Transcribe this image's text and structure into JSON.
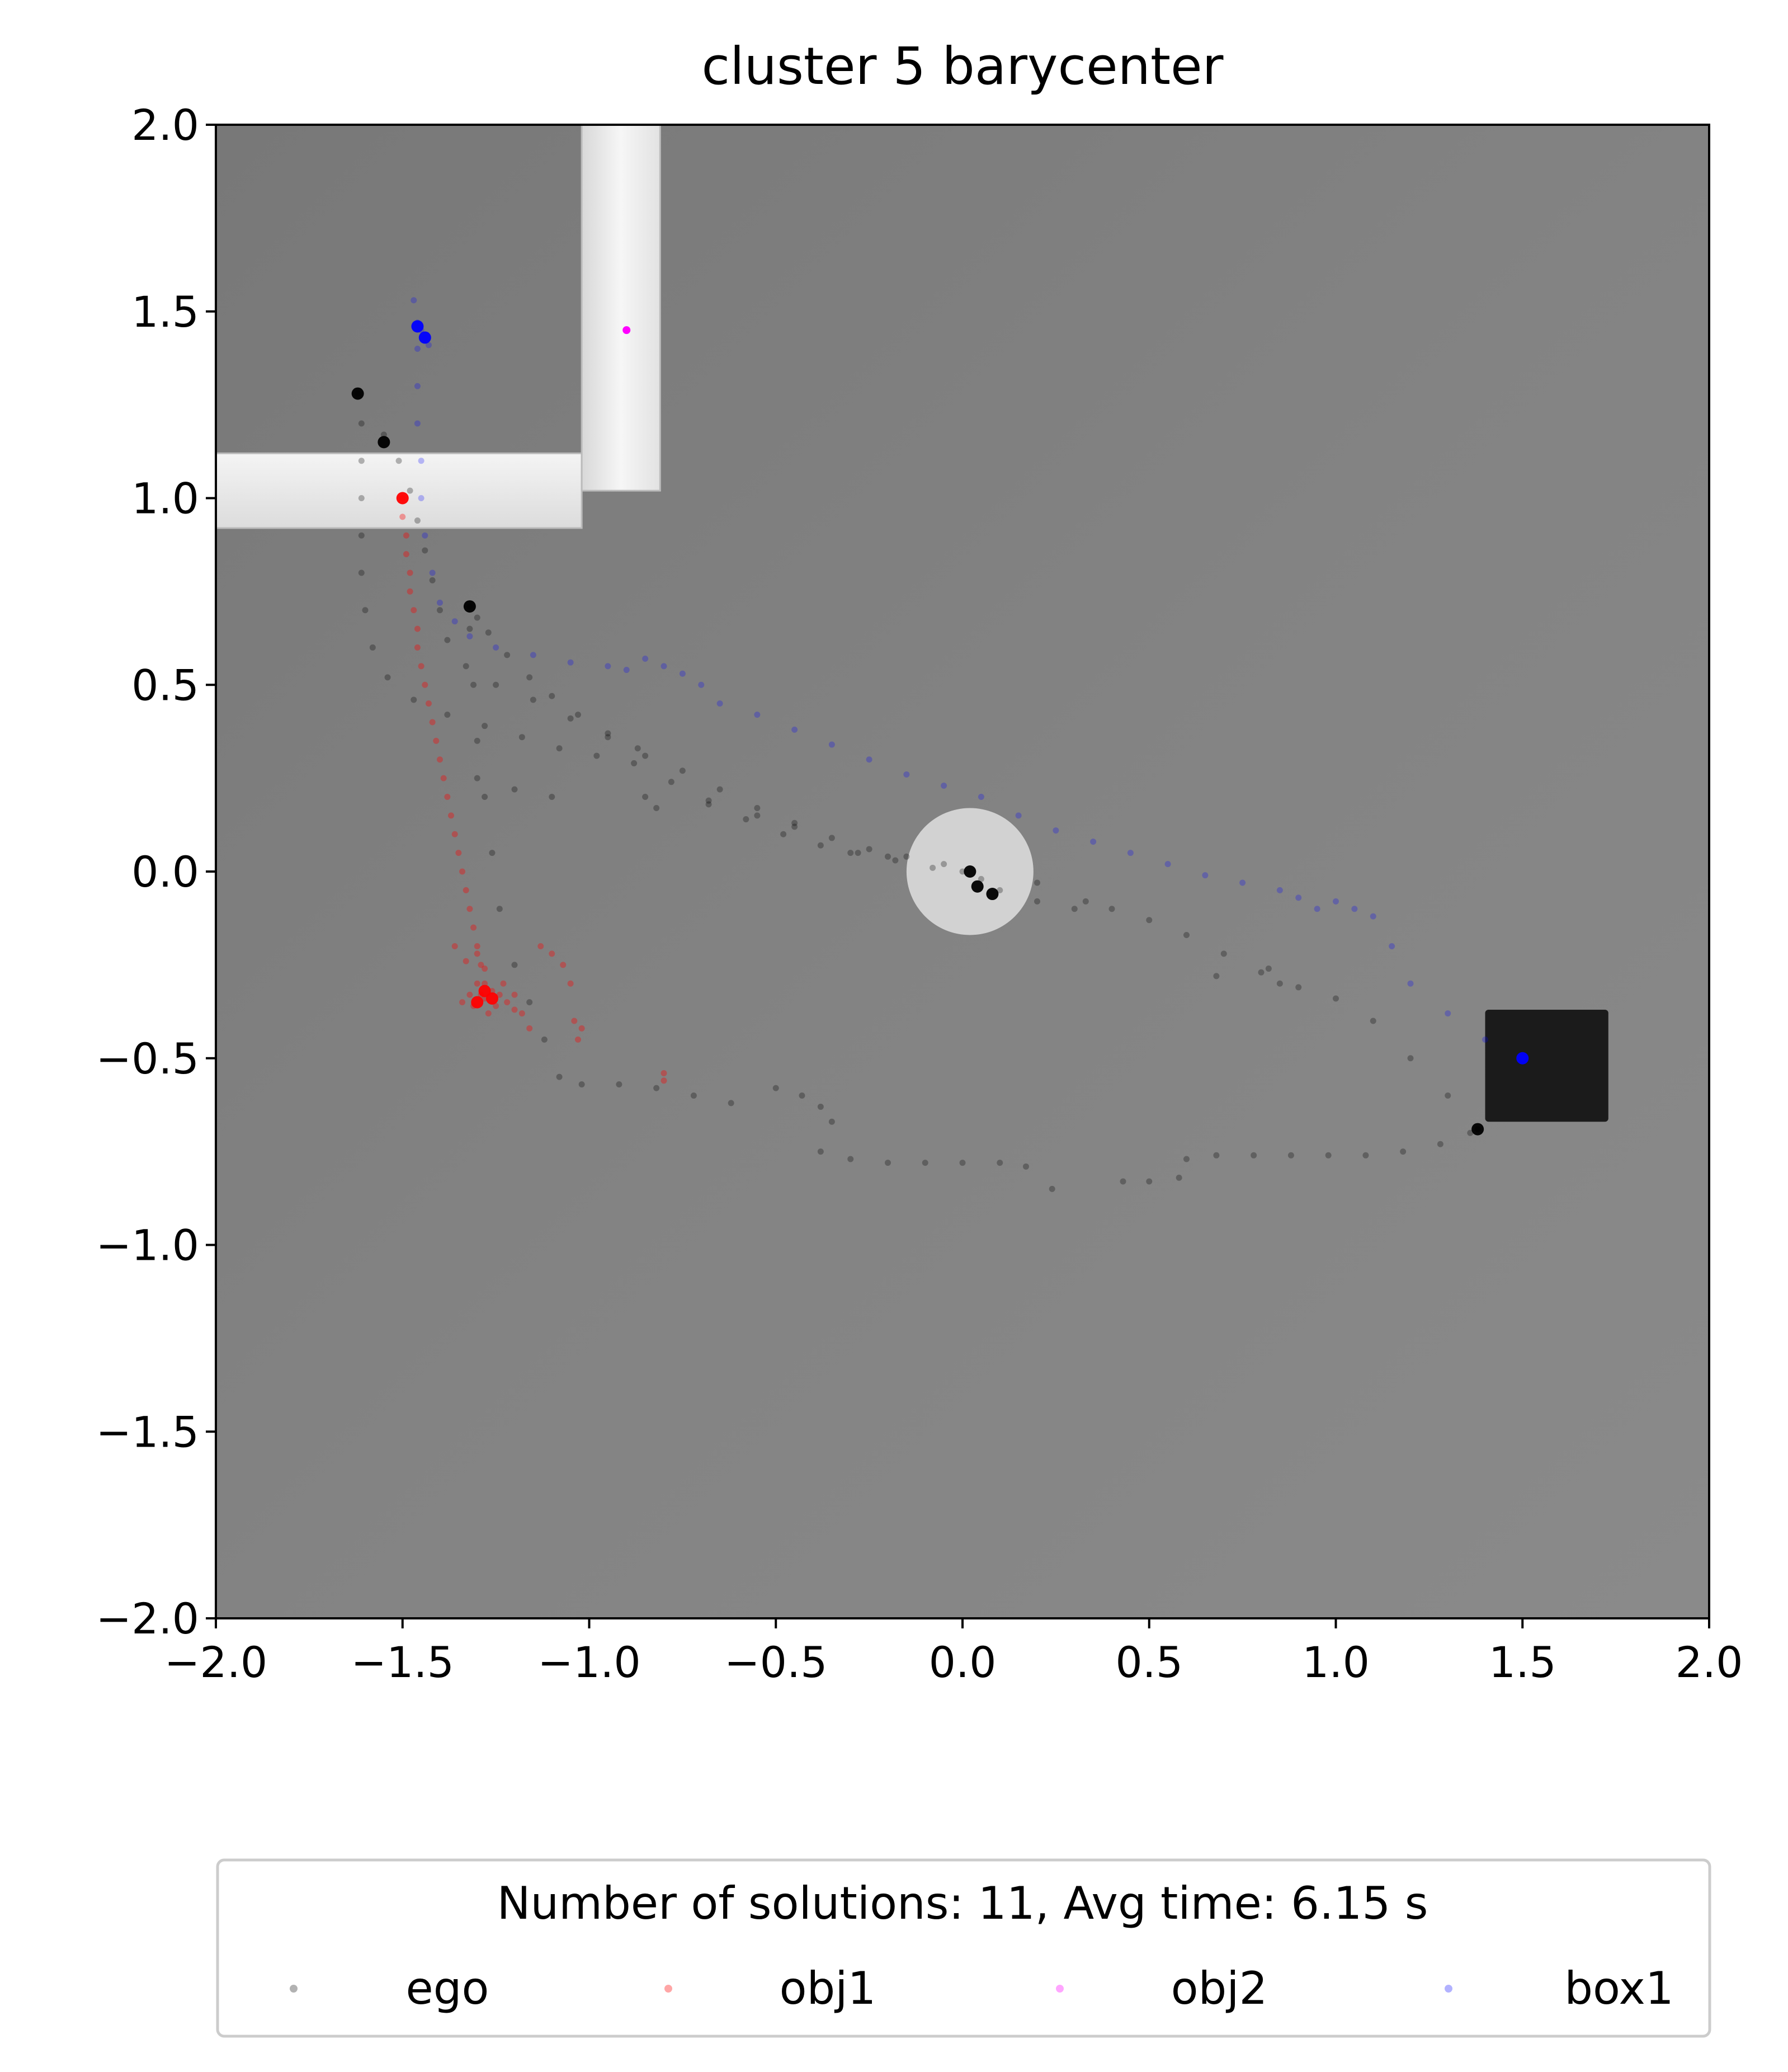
{
  "chart_data": {
    "type": "scatter",
    "title": "cluster 5 barycenter",
    "xlim": [
      -2.0,
      2.0
    ],
    "ylim": [
      -2.0,
      2.0
    ],
    "xticks": [
      "−2.0",
      "−1.5",
      "−1.0",
      "−0.5",
      "0.0",
      "0.5",
      "1.0",
      "1.5",
      "2.0"
    ],
    "yticks": [
      "2.0",
      "1.5",
      "1.0",
      "0.5",
      "0.0",
      "−0.5",
      "−1.0",
      "−1.5",
      "−2.0"
    ],
    "xtick_values": [
      -2.0,
      -1.5,
      -1.0,
      -0.5,
      0.0,
      0.5,
      1.0,
      1.5,
      2.0
    ],
    "ytick_values": [
      2.0,
      1.5,
      1.0,
      0.5,
      0.0,
      -0.5,
      -1.0,
      -1.5,
      -2.0
    ],
    "legend": {
      "title": "Number of solutions: 11, Avg time: 6.15 s",
      "placement": "below plot",
      "entries": [
        "ego",
        "obj1",
        "obj2",
        "box1"
      ]
    },
    "colors": {
      "ego": "#000000",
      "obj1": "#ff0000",
      "obj2": "#ff00ff",
      "box1": "#0000ff"
    },
    "background": {
      "walls": [
        {
          "x0": -2.0,
          "x1": -1.02,
          "y0": 0.92,
          "y1": 1.12
        },
        {
          "x0": -1.02,
          "x1": -0.81,
          "y0": 1.02,
          "y1": 2.0
        }
      ],
      "round_table": {
        "cx": 0.02,
        "cy": 0.0,
        "r": 0.17
      },
      "dark_box": {
        "x0": 1.4,
        "x1": 1.73,
        "y0": -0.67,
        "y1": -0.37
      }
    },
    "series": [
      {
        "name": "ego",
        "points": [
          [
            -1.62,
            1.28
          ],
          [
            -1.61,
            1.2
          ],
          [
            -1.61,
            1.1
          ],
          [
            -1.61,
            1.0
          ],
          [
            -1.61,
            0.9
          ],
          [
            -1.61,
            0.8
          ],
          [
            -1.6,
            0.7
          ],
          [
            -1.58,
            0.6
          ],
          [
            -1.54,
            0.52
          ],
          [
            -1.47,
            0.46
          ],
          [
            -1.38,
            0.42
          ],
          [
            -1.28,
            0.39
          ],
          [
            -1.18,
            0.36
          ],
          [
            -1.08,
            0.33
          ],
          [
            -0.98,
            0.31
          ],
          [
            -0.88,
            0.29
          ],
          [
            -0.78,
            0.24
          ],
          [
            -0.68,
            0.19
          ],
          [
            -0.58,
            0.14
          ],
          [
            -0.48,
            0.1
          ],
          [
            -0.38,
            0.07
          ],
          [
            -0.28,
            0.05
          ],
          [
            -0.18,
            0.03
          ],
          [
            -0.08,
            0.01
          ],
          [
            0.0,
            0.0
          ],
          [
            -1.55,
            1.17
          ],
          [
            -1.51,
            1.1
          ],
          [
            -1.48,
            1.02
          ],
          [
            -1.46,
            0.94
          ],
          [
            -1.44,
            0.86
          ],
          [
            -1.42,
            0.78
          ],
          [
            -1.4,
            0.7
          ],
          [
            -1.38,
            0.62
          ],
          [
            -1.33,
            0.55
          ],
          [
            -1.25,
            0.5
          ],
          [
            -1.15,
            0.46
          ],
          [
            -1.05,
            0.41
          ],
          [
            -0.95,
            0.36
          ],
          [
            -0.85,
            0.31
          ],
          [
            -0.75,
            0.27
          ],
          [
            -0.65,
            0.22
          ],
          [
            -0.55,
            0.17
          ],
          [
            -0.45,
            0.13
          ],
          [
            -0.35,
            0.09
          ],
          [
            -0.25,
            0.06
          ],
          [
            -0.15,
            0.04
          ],
          [
            -0.05,
            0.02
          ],
          [
            -1.32,
            0.71
          ],
          [
            -1.3,
            0.68
          ],
          [
            -1.27,
            0.64
          ],
          [
            -1.22,
            0.58
          ],
          [
            -1.16,
            0.52
          ],
          [
            -1.1,
            0.47
          ],
          [
            -1.03,
            0.42
          ],
          [
            -0.95,
            0.37
          ],
          [
            -0.87,
            0.33
          ],
          [
            -1.32,
            0.65
          ],
          [
            -1.31,
            0.5
          ],
          [
            -1.3,
            0.35
          ],
          [
            -1.28,
            0.2
          ],
          [
            -1.26,
            0.05
          ],
          [
            -1.24,
            -0.1
          ],
          [
            -1.2,
            -0.25
          ],
          [
            -1.16,
            -0.35
          ],
          [
            -1.12,
            -0.45
          ],
          [
            -1.08,
            -0.55
          ],
          [
            -1.02,
            -0.57
          ],
          [
            -0.92,
            -0.57
          ],
          [
            -0.82,
            -0.58
          ],
          [
            -0.72,
            -0.6
          ],
          [
            -0.62,
            -0.62
          ],
          [
            -0.5,
            -0.58
          ],
          [
            -0.43,
            -0.6
          ],
          [
            -0.38,
            -0.63
          ],
          [
            -0.35,
            -0.67
          ],
          [
            -0.38,
            -0.75
          ],
          [
            -0.3,
            -0.77
          ],
          [
            -0.2,
            -0.78
          ],
          [
            -0.1,
            -0.78
          ],
          [
            0.0,
            -0.78
          ],
          [
            0.1,
            -0.78
          ],
          [
            0.17,
            -0.79
          ],
          [
            0.24,
            -0.85
          ],
          [
            0.43,
            -0.83
          ],
          [
            0.5,
            -0.83
          ],
          [
            0.58,
            -0.82
          ],
          [
            0.6,
            -0.77
          ],
          [
            0.68,
            -0.76
          ],
          [
            0.78,
            -0.76
          ],
          [
            0.88,
            -0.76
          ],
          [
            0.98,
            -0.76
          ],
          [
            1.08,
            -0.76
          ],
          [
            1.18,
            -0.75
          ],
          [
            1.28,
            -0.73
          ],
          [
            1.36,
            -0.7
          ],
          [
            1.38,
            -0.69
          ],
          [
            0.05,
            -0.02
          ],
          [
            0.1,
            -0.05
          ],
          [
            0.2,
            -0.08
          ],
          [
            0.3,
            -0.1
          ],
          [
            0.4,
            -0.1
          ],
          [
            0.5,
            -0.13
          ],
          [
            0.6,
            -0.17
          ],
          [
            0.7,
            -0.22
          ],
          [
            0.8,
            -0.27
          ],
          [
            0.9,
            -0.31
          ],
          [
            1.0,
            -0.34
          ],
          [
            1.1,
            -0.4
          ],
          [
            1.2,
            -0.5
          ],
          [
            1.3,
            -0.6
          ],
          [
            1.38,
            -0.69
          ],
          [
            -1.3,
            0.25
          ],
          [
            -1.2,
            0.22
          ],
          [
            -1.1,
            0.2
          ],
          [
            -0.85,
            0.2
          ],
          [
            -0.82,
            0.17
          ],
          [
            -0.68,
            0.18
          ],
          [
            -0.55,
            0.15
          ],
          [
            -0.45,
            0.12
          ],
          [
            -0.3,
            0.05
          ],
          [
            -0.2,
            0.04
          ],
          [
            0.2,
            -0.03
          ],
          [
            0.33,
            -0.08
          ],
          [
            0.68,
            -0.28
          ],
          [
            0.82,
            -0.26
          ],
          [
            0.85,
            -0.3
          ]
        ]
      },
      {
        "name": "obj1",
        "points": [
          [
            -1.5,
            1.0
          ],
          [
            -1.5,
            0.95
          ],
          [
            -1.49,
            0.9
          ],
          [
            -1.49,
            0.85
          ],
          [
            -1.48,
            0.8
          ],
          [
            -1.48,
            0.75
          ],
          [
            -1.47,
            0.7
          ],
          [
            -1.46,
            0.65
          ],
          [
            -1.46,
            0.6
          ],
          [
            -1.45,
            0.55
          ],
          [
            -1.44,
            0.5
          ],
          [
            -1.43,
            0.45
          ],
          [
            -1.42,
            0.4
          ],
          [
            -1.41,
            0.35
          ],
          [
            -1.4,
            0.3
          ],
          [
            -1.39,
            0.25
          ],
          [
            -1.38,
            0.2
          ],
          [
            -1.37,
            0.15
          ],
          [
            -1.36,
            0.1
          ],
          [
            -1.35,
            0.05
          ],
          [
            -1.34,
            0.0
          ],
          [
            -1.33,
            -0.05
          ],
          [
            -1.32,
            -0.1
          ],
          [
            -1.31,
            -0.15
          ],
          [
            -1.3,
            -0.2
          ],
          [
            -1.29,
            -0.25
          ],
          [
            -1.28,
            -0.3
          ],
          [
            -1.36,
            -0.2
          ],
          [
            -1.33,
            -0.24
          ],
          [
            -1.3,
            -0.22
          ],
          [
            -1.28,
            -0.26
          ],
          [
            -1.3,
            -0.3
          ],
          [
            -1.32,
            -0.33
          ],
          [
            -1.34,
            -0.35
          ],
          [
            -1.31,
            -0.36
          ],
          [
            -1.28,
            -0.34
          ],
          [
            -1.26,
            -0.32
          ],
          [
            -1.24,
            -0.33
          ],
          [
            -1.22,
            -0.35
          ],
          [
            -1.2,
            -0.37
          ],
          [
            -1.27,
            -0.38
          ],
          [
            -1.23,
            -0.3
          ],
          [
            -1.29,
            -0.33
          ],
          [
            -1.25,
            -0.36
          ],
          [
            -1.2,
            -0.33
          ],
          [
            -1.18,
            -0.38
          ],
          [
            -1.16,
            -0.42
          ],
          [
            -1.13,
            -0.2
          ],
          [
            -1.1,
            -0.22
          ],
          [
            -1.07,
            -0.25
          ],
          [
            -1.05,
            -0.3
          ],
          [
            -1.04,
            -0.4
          ],
          [
            -1.02,
            -0.42
          ],
          [
            -1.03,
            -0.45
          ],
          [
            -0.8,
            -0.54
          ],
          [
            -0.8,
            -0.56
          ]
        ]
      },
      {
        "name": "obj2",
        "points": [
          [
            -0.9,
            1.45
          ]
        ]
      },
      {
        "name": "box1",
        "points": [
          [
            -1.47,
            1.53
          ],
          [
            -1.46,
            1.47
          ],
          [
            -1.45,
            1.45
          ],
          [
            -1.44,
            1.43
          ],
          [
            -1.43,
            1.41
          ],
          [
            -1.46,
            1.4
          ],
          [
            -1.46,
            1.3
          ],
          [
            -1.46,
            1.2
          ],
          [
            -1.45,
            1.1
          ],
          [
            -1.45,
            1.0
          ],
          [
            -1.44,
            0.9
          ],
          [
            -1.42,
            0.8
          ],
          [
            -1.4,
            0.72
          ],
          [
            -1.36,
            0.67
          ],
          [
            -1.32,
            0.63
          ],
          [
            -1.25,
            0.6
          ],
          [
            -1.15,
            0.58
          ],
          [
            -1.05,
            0.56
          ],
          [
            -0.95,
            0.55
          ],
          [
            -0.9,
            0.54
          ],
          [
            -0.85,
            0.57
          ],
          [
            -0.8,
            0.55
          ],
          [
            -0.75,
            0.53
          ],
          [
            -0.7,
            0.5
          ],
          [
            -0.65,
            0.45
          ],
          [
            -0.55,
            0.42
          ],
          [
            -0.45,
            0.38
          ],
          [
            -0.35,
            0.34
          ],
          [
            -0.25,
            0.3
          ],
          [
            -0.15,
            0.26
          ],
          [
            -0.05,
            0.23
          ],
          [
            0.05,
            0.2
          ],
          [
            0.15,
            0.15
          ],
          [
            0.25,
            0.11
          ],
          [
            0.35,
            0.08
          ],
          [
            0.45,
            0.05
          ],
          [
            0.55,
            0.02
          ],
          [
            0.65,
            -0.01
          ],
          [
            0.75,
            -0.03
          ],
          [
            0.85,
            -0.05
          ],
          [
            0.9,
            -0.07
          ],
          [
            0.95,
            -0.1
          ],
          [
            1.0,
            -0.08
          ],
          [
            1.05,
            -0.1
          ],
          [
            1.1,
            -0.12
          ],
          [
            1.15,
            -0.2
          ],
          [
            1.2,
            -0.3
          ],
          [
            1.3,
            -0.38
          ],
          [
            1.4,
            -0.45
          ],
          [
            1.5,
            -0.5
          ]
        ]
      }
    ],
    "highlight_points": {
      "ego": [
        [
          -1.62,
          1.28
        ],
        [
          -1.55,
          1.15
        ],
        [
          -1.32,
          0.71
        ],
        [
          0.02,
          0.0
        ],
        [
          0.04,
          -0.04
        ],
        [
          0.08,
          -0.06
        ],
        [
          1.38,
          -0.69
        ]
      ],
      "obj1": [
        [
          -1.5,
          1.0
        ],
        [
          -1.28,
          -0.32
        ],
        [
          -1.3,
          -0.35
        ],
        [
          -1.26,
          -0.34
        ]
      ],
      "box1": [
        [
          -1.46,
          1.46
        ],
        [
          -1.44,
          1.43
        ],
        [
          1.5,
          -0.5
        ]
      ]
    }
  }
}
